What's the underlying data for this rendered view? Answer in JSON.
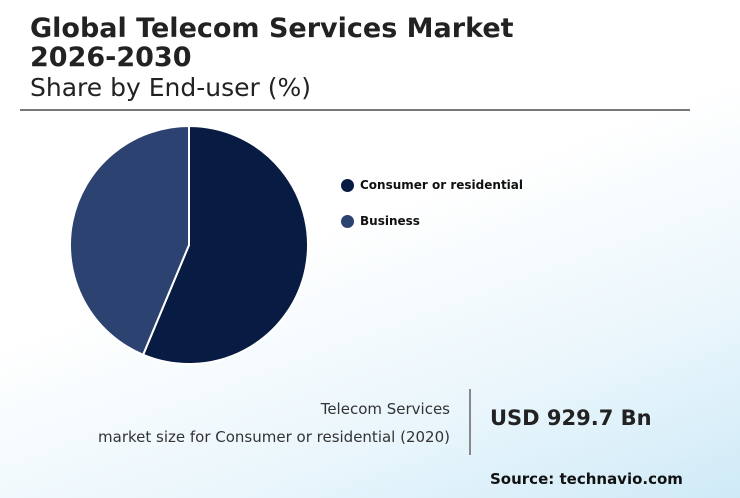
{
  "header": {
    "title_line1": "Global Telecom Services Market",
    "title_line2": "2026-2030",
    "subtitle": "Share by End-user (%)"
  },
  "chart_data": {
    "type": "pie",
    "title": "Global Telecom Services Market 2026-2030",
    "subtitle": "Share by End-user (%)",
    "categories": [
      "Consumer or residential",
      "Business"
    ],
    "values": [
      56.3,
      43.7
    ],
    "colors": [
      "#081b42",
      "#2c4270"
    ],
    "legend_position": "right"
  },
  "stat": {
    "label_line1": "Telecom Services",
    "label_line2": "market size for Consumer or residential (2020)",
    "value": "USD 929.7 Bn"
  },
  "source": "Source: technavio.com"
}
